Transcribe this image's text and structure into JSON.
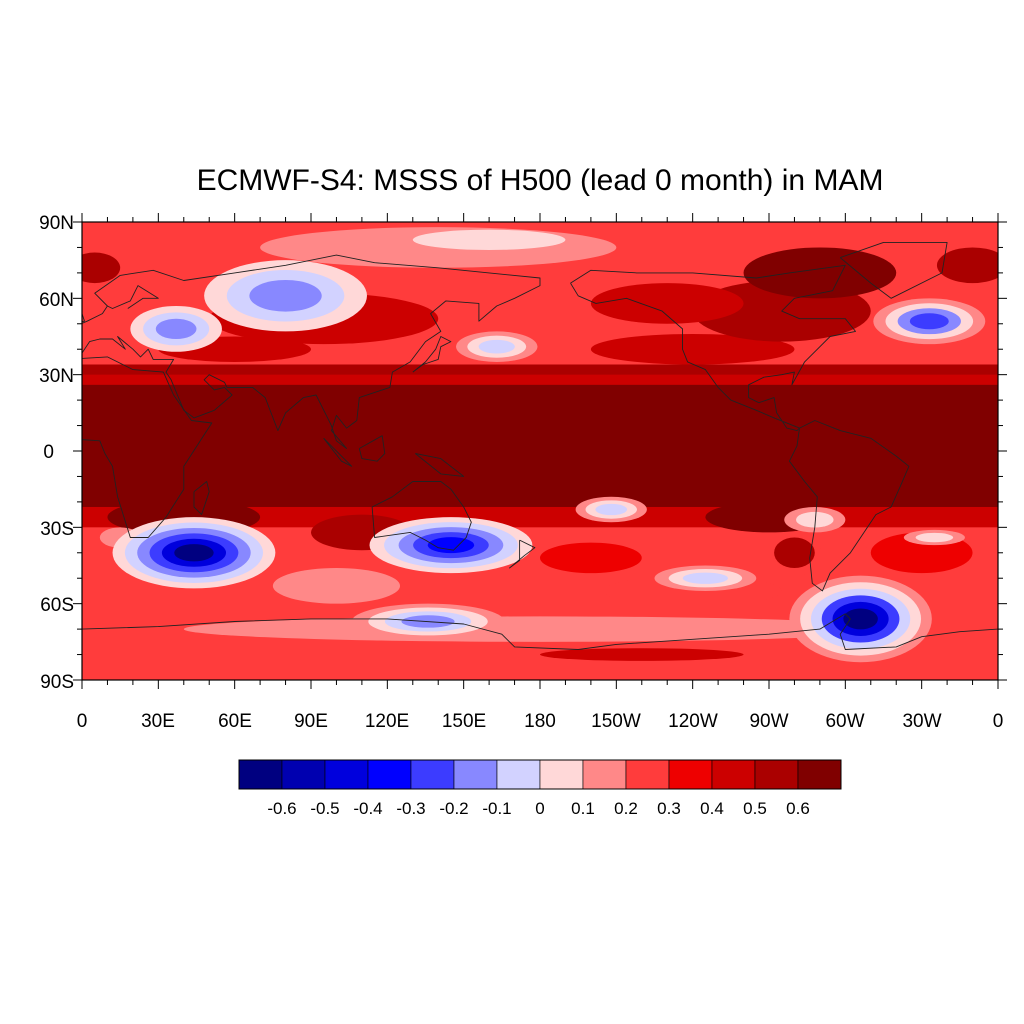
{
  "title": "ECMWF-S4: MSSS of H500 (lead 0 month) in MAM",
  "lat_labels": [
    "90N",
    "60N",
    "30N",
    "0",
    "30S",
    "60S",
    "90S"
  ],
  "lon_labels": [
    "0",
    "30E",
    "60E",
    "90E",
    "120E",
    "150E",
    "180",
    "150W",
    "120W",
    "90W",
    "60W",
    "30W",
    "0"
  ],
  "colorbar": {
    "colors": [
      "#000080",
      "#0000b0",
      "#0000dd",
      "#0000ff",
      "#3c3cff",
      "#8888ff",
      "#d2d2ff",
      "#ffd8d8",
      "#ff8888",
      "#ff3c3c",
      "#ee0000",
      "#cc0000",
      "#aa0000",
      "#800000"
    ],
    "labels": [
      "-0.6",
      "-0.5",
      "-0.4",
      "-0.3",
      "-0.2",
      "-0.1",
      "0",
      "0.1",
      "0.2",
      "0.3",
      "0.4",
      "0.5",
      "0.6"
    ]
  },
  "map_data": {
    "field": "MSSS of H500",
    "lon_range": [
      0,
      360
    ],
    "lat_range": [
      -90,
      90
    ],
    "features": [
      {
        "type": "band",
        "desc": "tropics",
        "lat": [
          -22,
          28
        ],
        "value": 0.65
      },
      {
        "type": "blob",
        "lon": 45,
        "lat": -41,
        "value": -0.6
      },
      {
        "type": "blob",
        "lon": 147,
        "lat": -38,
        "value": -0.35
      },
      {
        "type": "blob",
        "lon": 306,
        "lat": -66,
        "value": -0.6
      },
      {
        "type": "blob",
        "lon": 80,
        "lat": 61,
        "value": -0.15
      },
      {
        "type": "blob",
        "lon": 37,
        "lat": 48,
        "value": -0.2
      },
      {
        "type": "blob",
        "lon": 333,
        "lat": 51,
        "value": -0.25
      },
      {
        "type": "blob",
        "lon": 135,
        "lat": -67,
        "value": -0.2
      },
      {
        "type": "blob",
        "lon": 208,
        "lat": -23,
        "value": -0.1
      },
      {
        "type": "blob",
        "lon": 163,
        "lat": 41,
        "value": -0.05
      },
      {
        "type": "blob",
        "lon": 245,
        "lat": -50,
        "value": -0.1
      },
      {
        "type": "blob",
        "lon": 288,
        "lat": -27,
        "value": -0.05
      }
    ]
  }
}
